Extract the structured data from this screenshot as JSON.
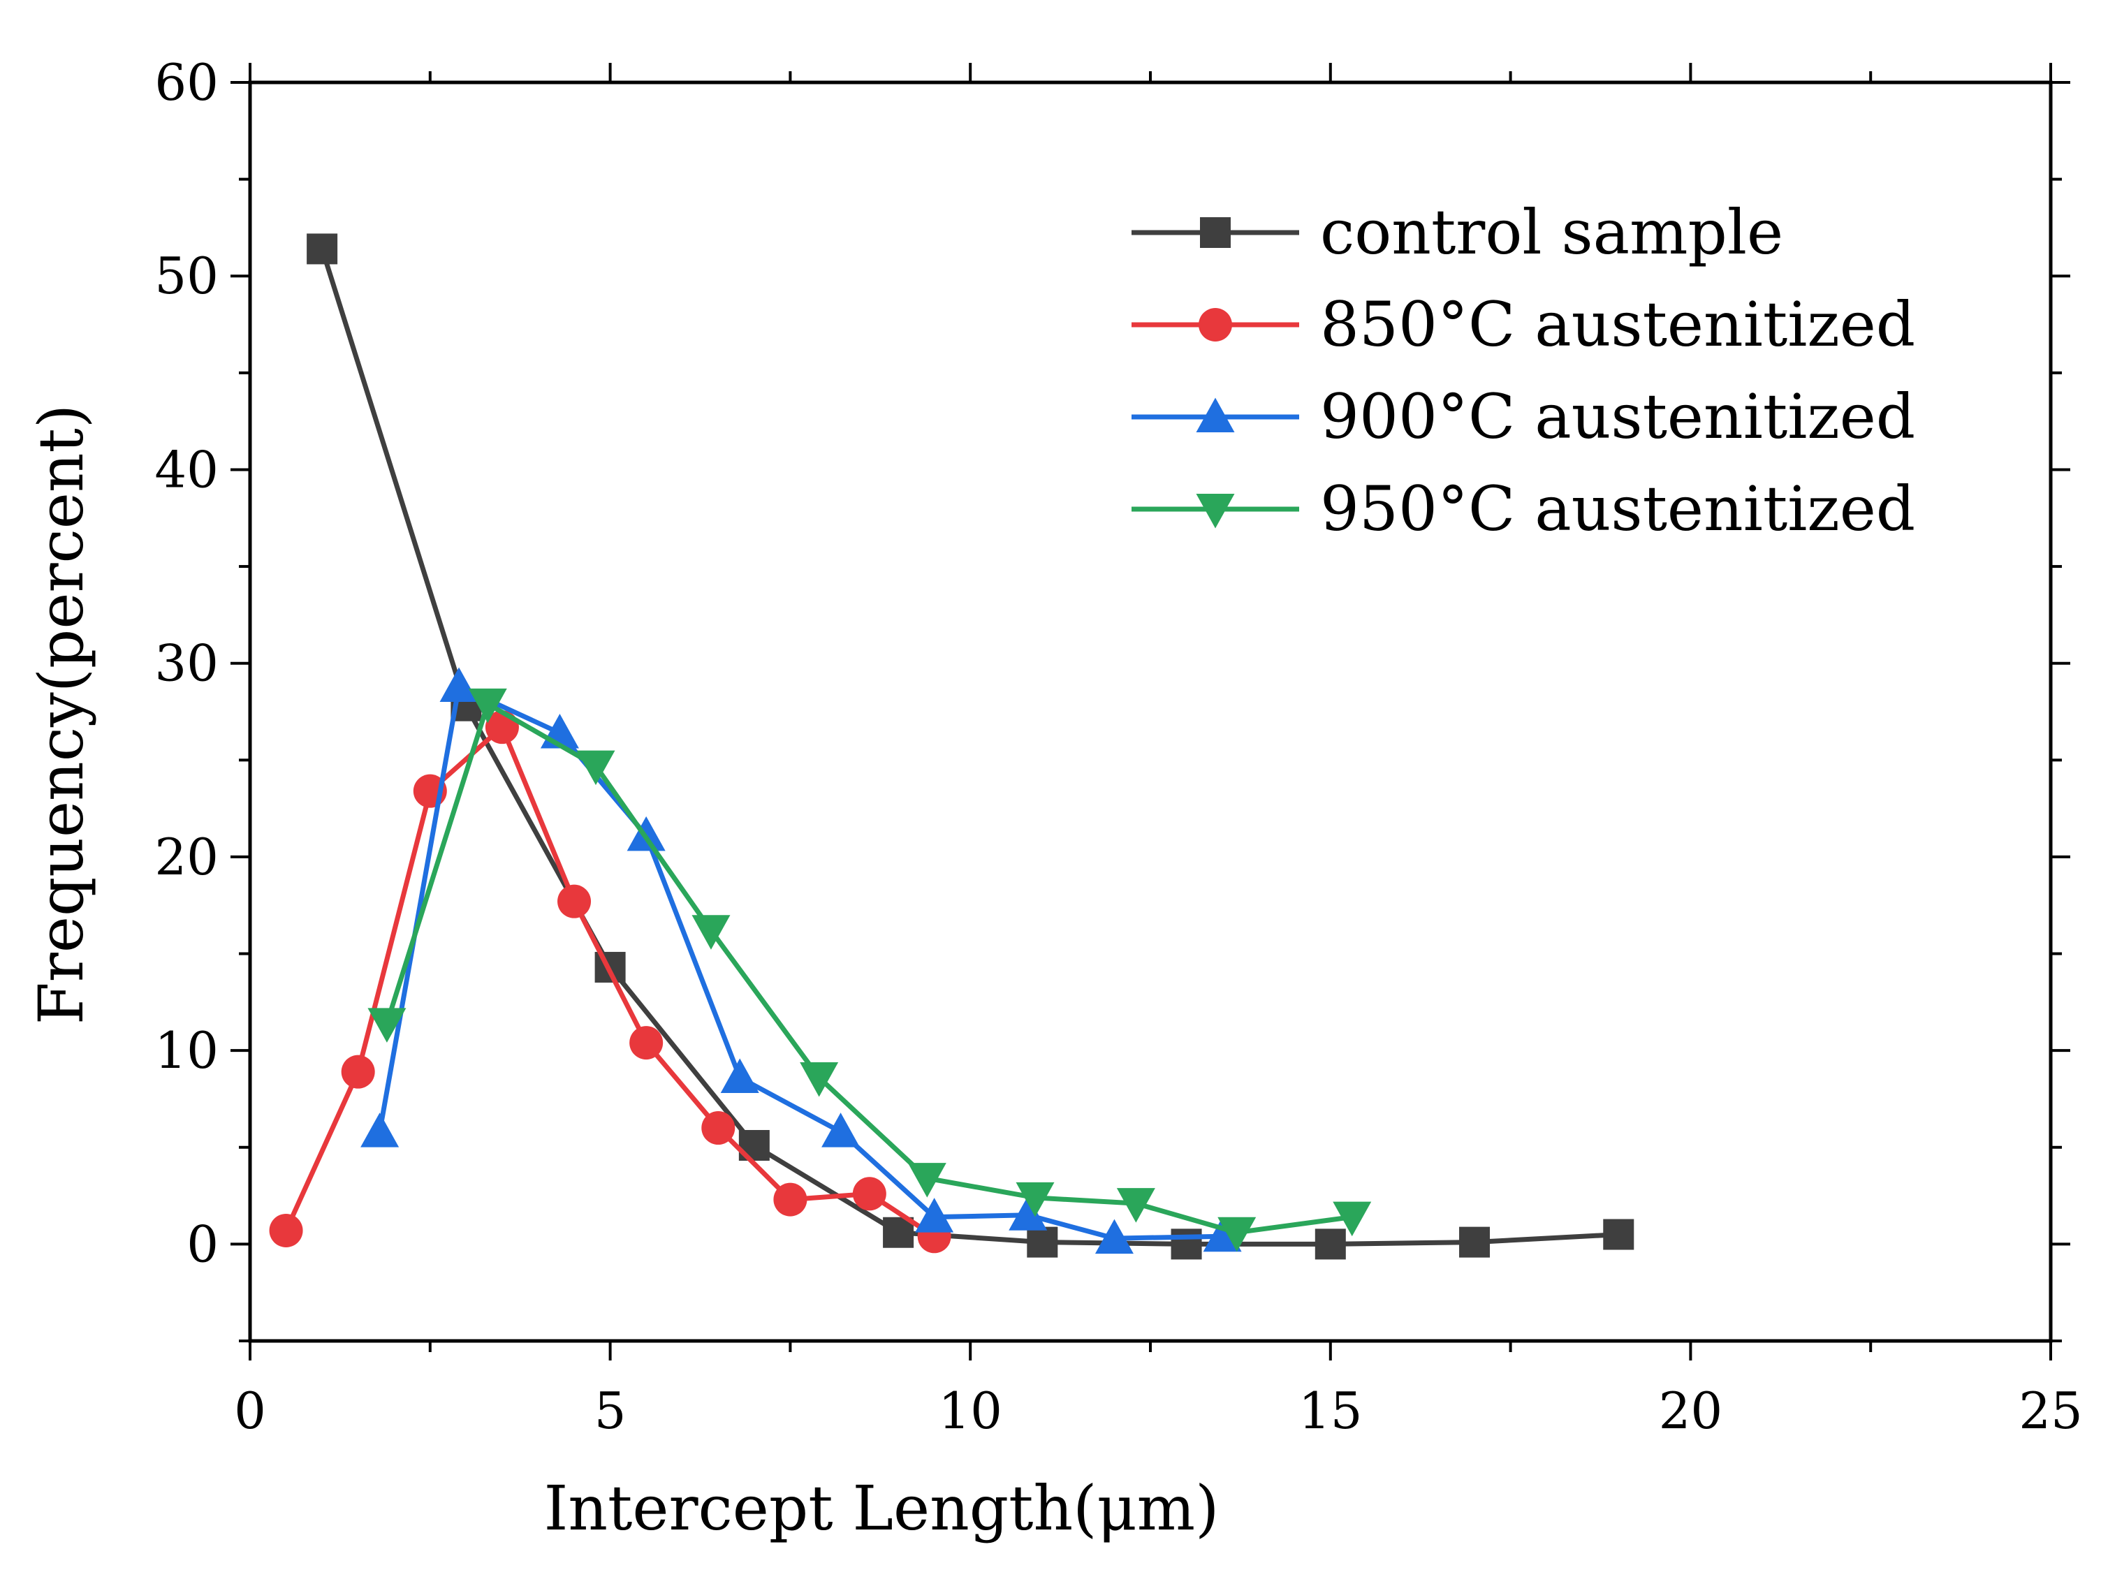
{
  "chart_data": {
    "type": "line",
    "xlabel": "Intercept Length(μm)",
    "ylabel": "Frequency(percent)",
    "xlim": [
      0,
      25
    ],
    "ylim": [
      -5,
      60
    ],
    "xticks": [
      0,
      5,
      10,
      15,
      20,
      25
    ],
    "yticks": [
      0,
      10,
      20,
      30,
      40,
      50,
      60
    ],
    "legend_position": "top-right",
    "series": [
      {
        "name": "control sample",
        "color": "#3f3f3f",
        "marker": "square",
        "x": [
          1.0,
          3.0,
          5.0,
          7.0,
          9.0,
          11.0,
          13.0,
          15.0,
          17.0,
          19.0
        ],
        "y": [
          51.4,
          27.8,
          14.3,
          5.1,
          0.6,
          0.1,
          0.0,
          0.0,
          0.1,
          0.5
        ]
      },
      {
        "name": "850°C austenitized",
        "color": "#e8383c",
        "marker": "circle",
        "x": [
          0.5,
          1.5,
          2.5,
          3.5,
          4.5,
          5.5,
          6.5,
          7.5,
          8.6,
          9.5
        ],
        "y": [
          0.7,
          8.9,
          23.4,
          26.7,
          17.7,
          10.4,
          6.0,
          2.3,
          2.6,
          0.4
        ]
      },
      {
        "name": "900°C austenitized",
        "color": "#1f6fe0",
        "marker": "triangle-up",
        "x": [
          1.8,
          2.9,
          4.3,
          5.5,
          6.8,
          8.2,
          9.5,
          10.8,
          12.0,
          13.5
        ],
        "y": [
          5.8,
          28.8,
          26.4,
          21.1,
          8.6,
          5.8,
          1.4,
          1.5,
          0.3,
          0.4
        ]
      },
      {
        "name": "950°C austenitized",
        "color": "#2aa65a",
        "marker": "triangle-down",
        "x": [
          1.9,
          3.3,
          4.8,
          6.4,
          7.9,
          9.4,
          10.9,
          12.3,
          13.7,
          15.3
        ],
        "y": [
          11.4,
          27.9,
          24.7,
          16.2,
          8.6,
          3.4,
          2.4,
          2.1,
          0.6,
          1.4
        ]
      }
    ]
  }
}
